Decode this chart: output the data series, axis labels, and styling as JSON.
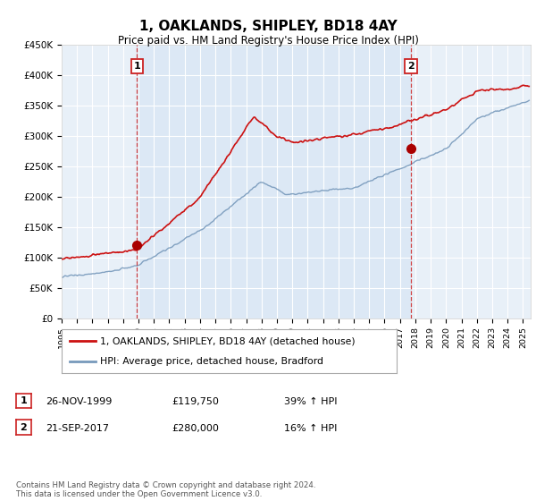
{
  "title": "1, OAKLANDS, SHIPLEY, BD18 4AY",
  "subtitle": "Price paid vs. HM Land Registry's House Price Index (HPI)",
  "ylim": [
    0,
    450000
  ],
  "yticks": [
    0,
    50000,
    100000,
    150000,
    200000,
    250000,
    300000,
    350000,
    400000,
    450000
  ],
  "ytick_labels": [
    "£0",
    "£50K",
    "£100K",
    "£150K",
    "£200K",
    "£250K",
    "£300K",
    "£350K",
    "£400K",
    "£450K"
  ],
  "xlim_start": 1995.0,
  "xlim_end": 2025.5,
  "background_color": "#ffffff",
  "plot_bg_color": "#e8f0f8",
  "shade_bg_color": "#dce8f5",
  "grid_color": "#ffffff",
  "sale1_x": 1999.9,
  "sale1_y": 119750,
  "sale1_label": "1",
  "sale2_x": 2017.72,
  "sale2_y": 280000,
  "sale2_label": "2",
  "sale_marker_color": "#aa0000",
  "sale_line_color": "#cc2222",
  "legend_line1": "1, OAKLANDS, SHIPLEY, BD18 4AY (detached house)",
  "legend_line2": "HPI: Average price, detached house, Bradford",
  "table_row1": [
    "1",
    "26-NOV-1999",
    "£119,750",
    "39% ↑ HPI"
  ],
  "table_row2": [
    "2",
    "21-SEP-2017",
    "£280,000",
    "16% ↑ HPI"
  ],
  "footer": "Contains HM Land Registry data © Crown copyright and database right 2024.\nThis data is licensed under the Open Government Licence v3.0.",
  "red_line_color": "#cc1111",
  "blue_line_color": "#7799bb"
}
